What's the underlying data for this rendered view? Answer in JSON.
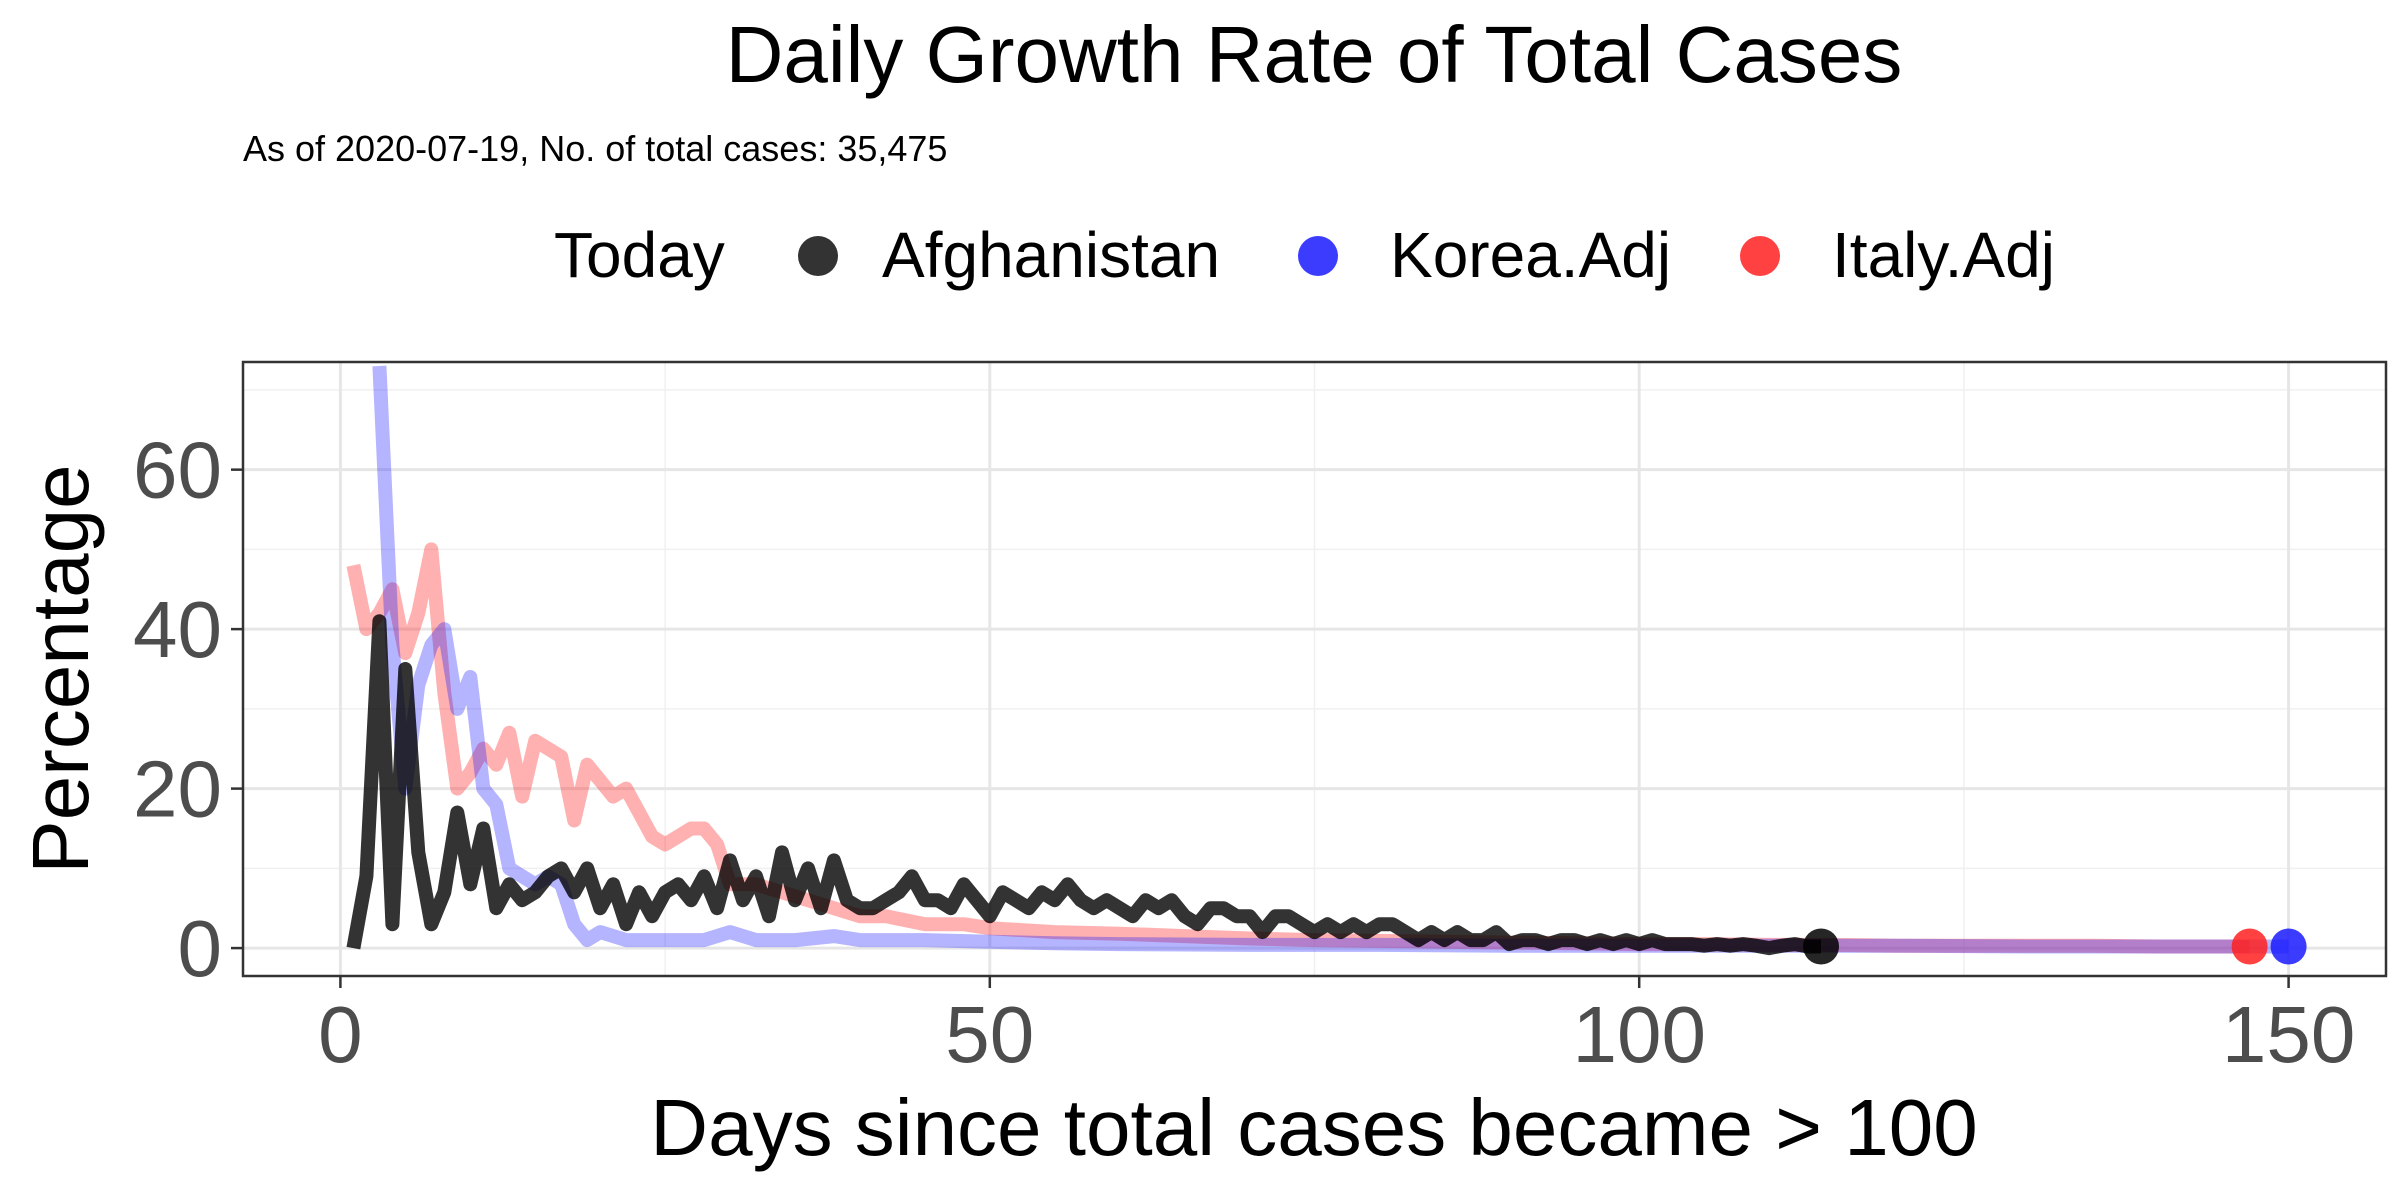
{
  "chart_data": {
    "type": "line",
    "title": "Daily Growth Rate of Total Cases",
    "subtitle": "As of 2020-07-19, No. of total cases: 35,475",
    "xlabel": "Days since total cases became > 100",
    "ylabel": "Percentage",
    "xlim": [
      -7.5,
      157.5
    ],
    "ylim": [
      -3.5,
      73.5
    ],
    "x_ticks": [
      0,
      50,
      100,
      150
    ],
    "y_ticks": [
      0,
      20,
      40,
      60
    ],
    "grid": true,
    "legend": {
      "position": "top",
      "title": "Today",
      "entries": [
        "Afghanistan",
        "Korea.Adj",
        "Italy.Adj"
      ]
    },
    "series": [
      {
        "name": "Italy.Adj",
        "color": "#ff2020",
        "line_opacity": 0.35,
        "x": [
          1,
          2,
          3,
          4,
          5,
          6,
          7,
          8,
          9,
          10,
          11,
          12,
          13,
          14,
          15,
          16,
          17,
          18,
          19,
          20,
          21,
          22,
          23,
          24,
          25,
          26,
          27,
          28,
          29,
          30,
          32,
          34,
          36,
          38,
          40,
          42,
          45,
          48,
          50,
          55,
          60,
          65,
          70,
          75,
          80,
          85,
          90,
          95,
          100,
          105,
          110,
          115,
          120,
          125,
          130,
          135,
          140,
          145,
          147
        ],
        "values": [
          48,
          40,
          42,
          45,
          37,
          42,
          50,
          32,
          20,
          22,
          25,
          23,
          27,
          19,
          26,
          25,
          24,
          16,
          23,
          21,
          19,
          20,
          17,
          14,
          13,
          14,
          15,
          15,
          13,
          8,
          8,
          7,
          6,
          5,
          4,
          4,
          3,
          3,
          2.5,
          2,
          1.8,
          1.5,
          1.2,
          1,
          0.9,
          0.8,
          0.7,
          0.6,
          0.5,
          0.5,
          0.4,
          0.4,
          0.3,
          0.3,
          0.3,
          0.3,
          0.2,
          0.2,
          0.2
        ],
        "today": {
          "x": 147,
          "y": 0.2
        }
      },
      {
        "name": "Korea.Adj",
        "color": "#1a1aff",
        "line_opacity": 0.33,
        "x": [
          3,
          4,
          5,
          6,
          7,
          8,
          9,
          10,
          11,
          12,
          13,
          14,
          15,
          16,
          17,
          18,
          19,
          20,
          22,
          25,
          28,
          30,
          32,
          35,
          38,
          40,
          45,
          50,
          55,
          60,
          70,
          80,
          90,
          100,
          110,
          120,
          130,
          140,
          145,
          150
        ],
        "values": [
          73,
          38,
          20,
          33,
          38,
          40,
          30,
          34,
          20,
          18,
          10,
          9,
          8,
          9,
          8,
          3,
          1,
          2,
          1,
          1,
          1,
          2,
          1,
          1,
          1.5,
          1,
          1,
          0.8,
          0.6,
          0.5,
          0.4,
          0.4,
          0.3,
          0.3,
          0.3,
          0.3,
          0.2,
          0.2,
          0.2,
          0.2
        ],
        "today": {
          "x": 150,
          "y": 0.2
        }
      },
      {
        "name": "Afghanistan",
        "color": "#000000",
        "line_opacity": 0.8,
        "x": [
          1,
          2,
          3,
          4,
          5,
          6,
          7,
          8,
          9,
          10,
          11,
          12,
          13,
          14,
          15,
          16,
          17,
          18,
          19,
          20,
          21,
          22,
          23,
          24,
          25,
          26,
          27,
          28,
          29,
          30,
          31,
          32,
          33,
          34,
          35,
          36,
          37,
          38,
          39,
          40,
          41,
          42,
          43,
          44,
          45,
          46,
          47,
          48,
          49,
          50,
          51,
          52,
          53,
          54,
          55,
          56,
          57,
          58,
          59,
          60,
          61,
          62,
          63,
          64,
          65,
          66,
          67,
          68,
          69,
          70,
          71,
          72,
          73,
          74,
          75,
          76,
          77,
          78,
          79,
          80,
          81,
          82,
          83,
          84,
          85,
          86,
          87,
          88,
          89,
          90,
          91,
          92,
          93,
          94,
          95,
          96,
          97,
          98,
          99,
          100,
          101,
          102,
          103,
          104,
          105,
          106,
          107,
          108,
          109,
          110,
          111,
          112,
          113,
          114
        ],
        "values": [
          0,
          9,
          41,
          3,
          35,
          12,
          3,
          7,
          17,
          8,
          15,
          5,
          8,
          6,
          7,
          9,
          10,
          7,
          10,
          5,
          8,
          3,
          7,
          4,
          7,
          8,
          6,
          9,
          5,
          11,
          6,
          9,
          4,
          12,
          6,
          10,
          5,
          11,
          6,
          5,
          5,
          6,
          7,
          9,
          6,
          6,
          5,
          8,
          6,
          4,
          7,
          6,
          5,
          7,
          6,
          8,
          6,
          5,
          6,
          5,
          4,
          6,
          5,
          6,
          4,
          3,
          5,
          5,
          4,
          4,
          2,
          4,
          4,
          3,
          2,
          3,
          2,
          3,
          2,
          3,
          3,
          2,
          1,
          2,
          1,
          2,
          1,
          1,
          2,
          0.5,
          1,
          1,
          0.5,
          1,
          1,
          0.5,
          1,
          0.5,
          1,
          0.5,
          1,
          0.5,
          0.5,
          0.5,
          0.3,
          0.5,
          0.3,
          0.5,
          0.3,
          0,
          0.3,
          0.5,
          0.2,
          0.2
        ],
        "today": {
          "x": 114,
          "y": 0.2
        }
      }
    ]
  }
}
